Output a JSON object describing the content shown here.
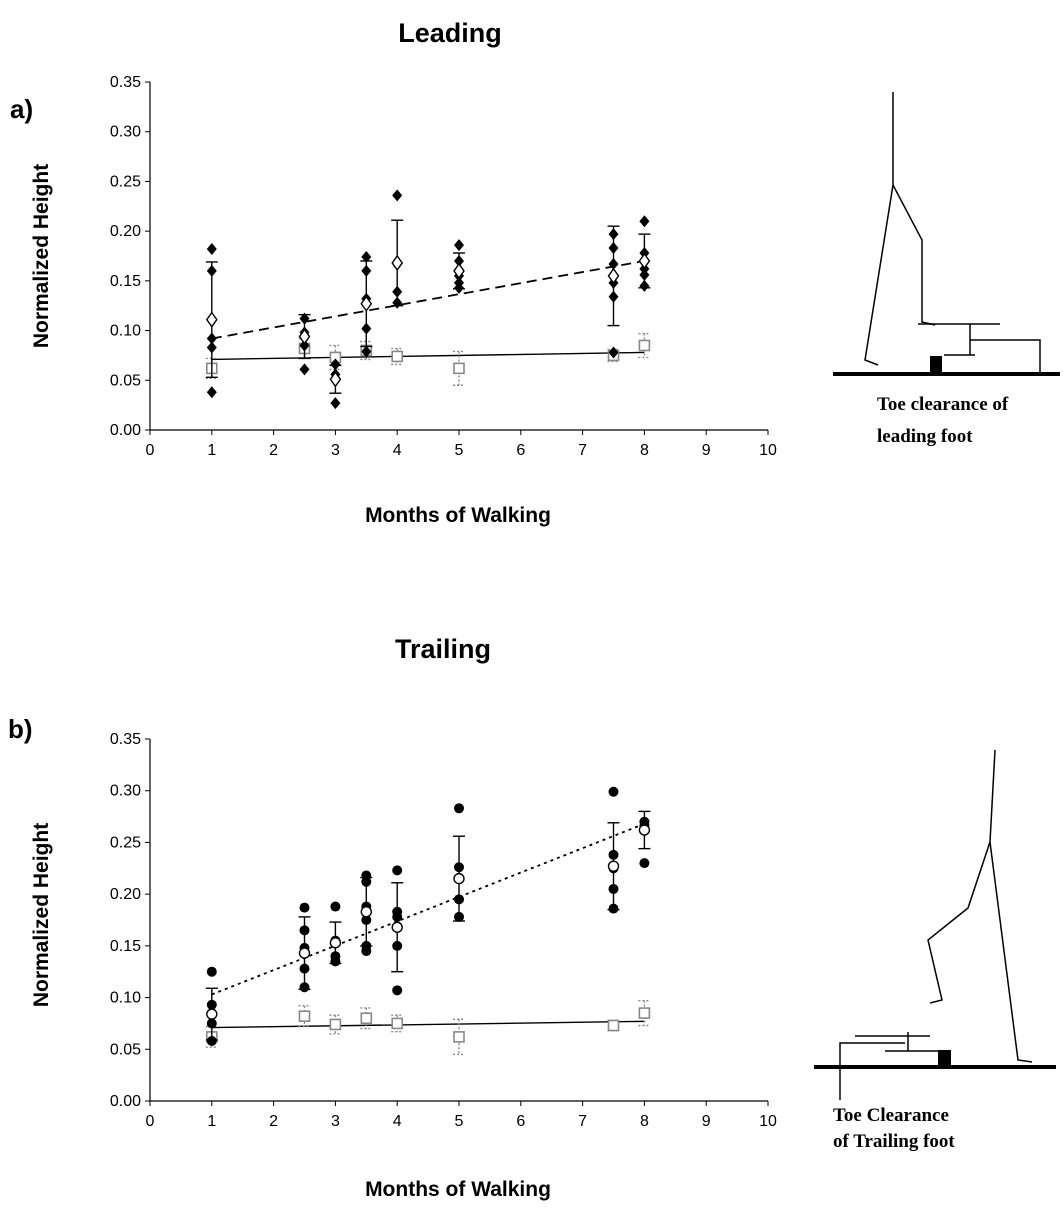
{
  "chart_data": [
    {
      "type": "scatter",
      "panel_label": "a)",
      "title": "Leading",
      "xlabel": "Months of Walking",
      "ylabel": "Normalized Height",
      "xlim": [
        0,
        10
      ],
      "ylim": [
        0,
        0.35
      ],
      "x_ticks": [
        "0",
        "1",
        "2",
        "3",
        "4",
        "5",
        "6",
        "7",
        "8",
        "9",
        "10"
      ],
      "y_ticks": [
        "0.00",
        "0.05",
        "0.10",
        "0.15",
        "0.20",
        "0.25",
        "0.30",
        "0.35"
      ],
      "grid": false,
      "legend": "none",
      "individual_points": {
        "marker": "filled-diamond",
        "color": "#000000",
        "x": [
          1,
          1,
          1,
          1,
          1,
          2.5,
          2.5,
          2.5,
          2.5,
          3,
          3,
          3,
          3.5,
          3.5,
          3.5,
          3.5,
          3.5,
          4,
          4,
          4,
          4,
          5,
          5,
          5,
          5,
          5,
          7.5,
          7.5,
          7.5,
          7.5,
          7.5,
          7.5,
          8,
          8,
          8,
          8,
          8
        ],
        "y": [
          0.182,
          0.16,
          0.092,
          0.083,
          0.038,
          0.112,
          0.098,
          0.085,
          0.061,
          0.066,
          0.056,
          0.027,
          0.174,
          0.16,
          0.132,
          0.102,
          0.079,
          0.236,
          0.168,
          0.139,
          0.128,
          0.186,
          0.17,
          0.155,
          0.148,
          0.143,
          0.197,
          0.183,
          0.167,
          0.148,
          0.134,
          0.078,
          0.21,
          0.178,
          0.162,
          0.156,
          0.145
        ]
      },
      "mean": {
        "marker": "open-diamond",
        "x": [
          1,
          2.5,
          3,
          3.5,
          4,
          5,
          7.5,
          8
        ],
        "y": [
          0.111,
          0.094,
          0.051,
          0.127,
          0.168,
          0.16,
          0.155,
          0.17
        ],
        "sd": [
          0.058,
          0.022,
          0.014,
          0.043,
          0.043,
          0.018,
          0.05,
          0.027
        ]
      },
      "mean_trend": {
        "style": "dashed",
        "x": [
          1,
          8
        ],
        "y": [
          0.092,
          0.17
        ]
      },
      "reference": {
        "marker": "open-square",
        "color": "#888888",
        "x": [
          1,
          2.5,
          3,
          3.5,
          4,
          5,
          7.5,
          8
        ],
        "y": [
          0.062,
          0.082,
          0.073,
          0.08,
          0.074,
          0.062,
          0.075,
          0.085
        ],
        "sd": [
          0.01,
          0.01,
          0.012,
          0.009,
          0.008,
          0.017,
          0.006,
          0.012
        ]
      },
      "reference_trend": {
        "style": "solid",
        "x": [
          1,
          8
        ],
        "y": [
          0.071,
          0.078
        ]
      },
      "illustration": {
        "type": "toe-clearance-diagram",
        "foot": "leading",
        "caption_lines": [
          "Toe clearance of",
          "leading foot"
        ]
      }
    },
    {
      "type": "scatter",
      "panel_label": "b)",
      "title": "Trailing",
      "xlabel": "Months of Walking",
      "ylabel": "Normalized Height",
      "xlim": [
        0,
        10
      ],
      "ylim": [
        0,
        0.35
      ],
      "x_ticks": [
        "0",
        "1",
        "2",
        "3",
        "4",
        "5",
        "6",
        "7",
        "8",
        "9",
        "10"
      ],
      "y_ticks": [
        "0.00",
        "0.05",
        "0.10",
        "0.15",
        "0.20",
        "0.25",
        "0.30",
        "0.35"
      ],
      "grid": false,
      "legend": "none",
      "individual_points": {
        "marker": "filled-circle",
        "color": "#000000",
        "x": [
          1,
          1,
          1,
          1,
          2.5,
          2.5,
          2.5,
          2.5,
          2.5,
          3,
          3,
          3,
          3,
          3.5,
          3.5,
          3.5,
          3.5,
          3.5,
          3.5,
          4,
          4,
          4,
          4,
          4,
          5,
          5,
          5,
          5,
          7.5,
          7.5,
          7.5,
          7.5,
          7.5,
          8,
          8,
          8
        ],
        "y": [
          0.125,
          0.093,
          0.075,
          0.058,
          0.187,
          0.165,
          0.148,
          0.128,
          0.11,
          0.188,
          0.155,
          0.14,
          0.135,
          0.218,
          0.212,
          0.188,
          0.175,
          0.15,
          0.145,
          0.223,
          0.183,
          0.178,
          0.15,
          0.107,
          0.283,
          0.226,
          0.195,
          0.178,
          0.299,
          0.238,
          0.225,
          0.205,
          0.186,
          0.27,
          0.266,
          0.23
        ]
      },
      "mean": {
        "marker": "open-circle",
        "x": [
          1,
          2.5,
          3,
          3.5,
          4,
          5,
          7.5,
          8
        ],
        "y": [
          0.084,
          0.143,
          0.153,
          0.183,
          0.168,
          0.215,
          0.227,
          0.262
        ],
        "sd": [
          0.025,
          0.035,
          0.02,
          0.033,
          0.043,
          0.041,
          0.042,
          0.018
        ]
      },
      "mean_trend": {
        "style": "dotted",
        "x": [
          1,
          8
        ],
        "y": [
          0.103,
          0.268
        ]
      },
      "reference": {
        "marker": "open-square",
        "color": "#888888",
        "x": [
          1,
          2.5,
          3,
          3.5,
          4,
          5,
          7.5,
          8
        ],
        "y": [
          0.062,
          0.082,
          0.074,
          0.08,
          0.075,
          0.062,
          0.073,
          0.085
        ],
        "sd": [
          0.01,
          0.01,
          0.009,
          0.01,
          0.008,
          0.017,
          0.005,
          0.012
        ]
      },
      "reference_trend": {
        "style": "solid",
        "x": [
          1,
          8
        ],
        "y": [
          0.071,
          0.077
        ]
      },
      "illustration": {
        "type": "toe-clearance-diagram",
        "foot": "trailing",
        "caption_lines": [
          "Toe Clearance",
          "of Trailing foot"
        ]
      }
    }
  ]
}
